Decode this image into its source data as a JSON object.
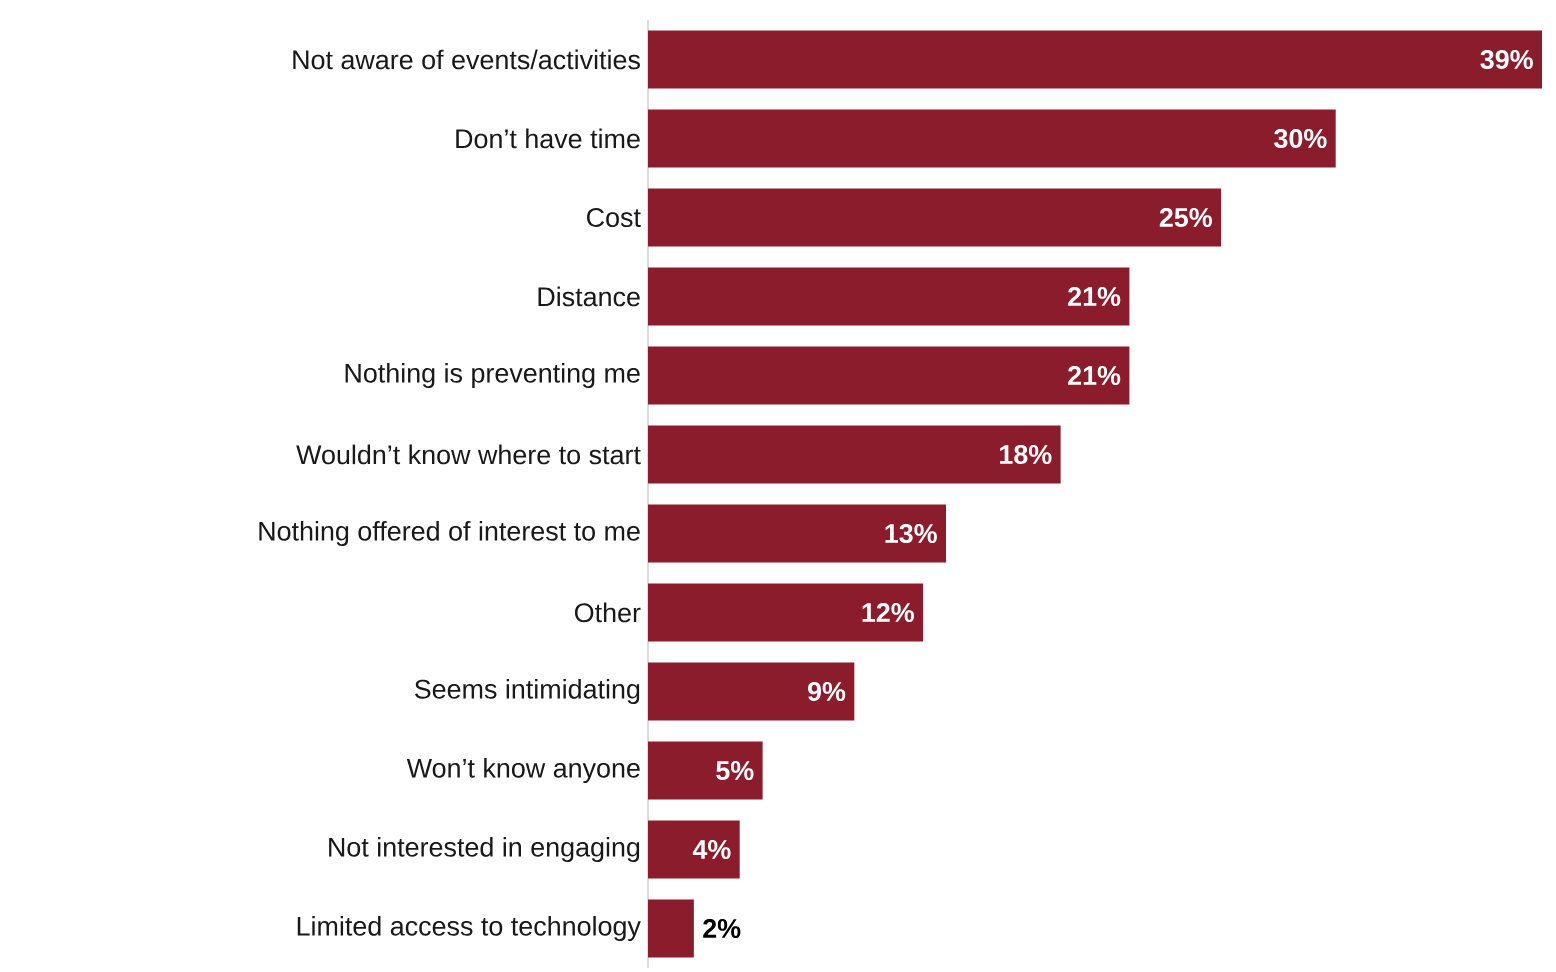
{
  "chart_data": {
    "type": "bar",
    "orientation": "horizontal",
    "color": "#8b1c2c",
    "categories": [
      "Not aware of events/activities",
      "Don’t have time",
      "Cost",
      "Distance",
      "Nothing is preventing me",
      "Wouldn’t know where to start",
      "Nothing offered of interest to me",
      "Other",
      "Seems intimidating",
      "Won’t know anyone",
      "Not interested in engaging",
      "Limited access to technology"
    ],
    "values": [
      39,
      30,
      25,
      21,
      21,
      18,
      13,
      12,
      9,
      5,
      4,
      2
    ],
    "value_labels": [
      "39%",
      "30%",
      "25%",
      "21%",
      "21%",
      "18%",
      "13%",
      "12%",
      "9%",
      "5%",
      "4%",
      "2%"
    ],
    "tick_labels": "y"
  }
}
